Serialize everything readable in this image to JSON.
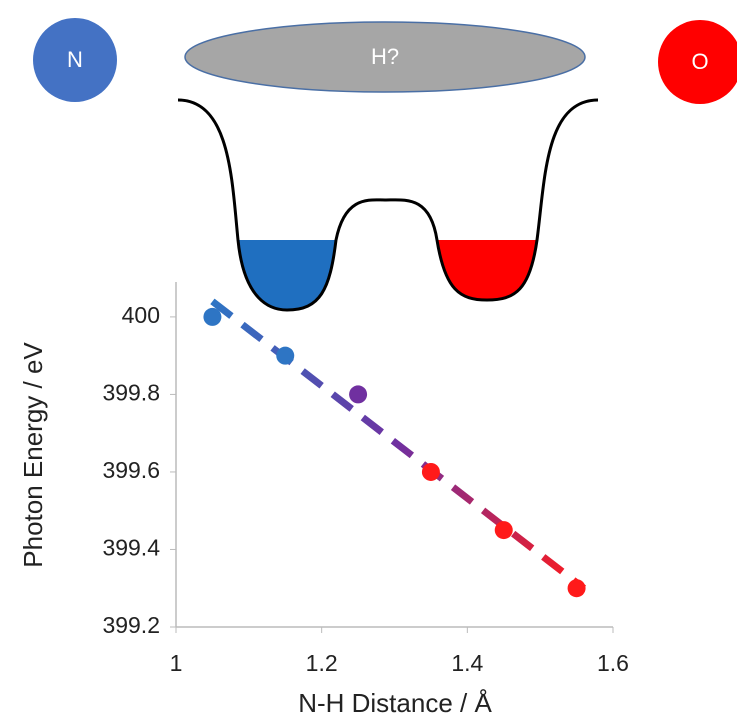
{
  "diagram": {
    "labels": [
      "N",
      "H?",
      "O"
    ]
  },
  "chart_data": {
    "type": "scatter",
    "x_label": "N-H Distance / Å",
    "y_label": "Photon Energy / eV",
    "x": [
      1.05,
      1.15,
      1.25,
      1.35,
      1.45,
      1.55
    ],
    "values": [
      400,
      399.9,
      399.8,
      399.6,
      399.45,
      399.3
    ],
    "colors": [
      "#2e75c4",
      "#2e75c4",
      "#7030a0",
      "#ff1a1a",
      "#ff1a1a",
      "#ff1a1a"
    ],
    "trendline": {
      "x": [
        1.05,
        1.56
      ],
      "values": [
        400.04,
        399.3
      ],
      "colors": [
        "#2e75c4",
        "#7030a0",
        "#ff1a1a"
      ]
    },
    "xlim": [
      1,
      1.6
    ],
    "xticks": [
      1,
      1.2,
      1.4,
      1.6
    ],
    "ylim": [
      399.2,
      400.09
    ],
    "yticks": [
      399.2,
      399.4,
      399.6,
      399.8,
      400
    ],
    "grid": false
  }
}
